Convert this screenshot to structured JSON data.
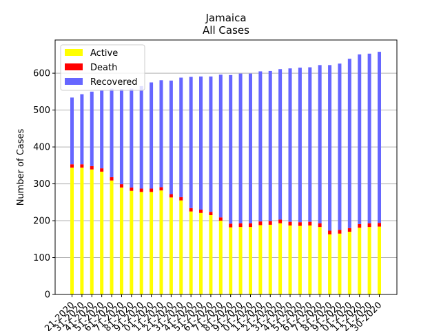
{
  "chart_data": {
    "type": "bar",
    "stacked": true,
    "title_line1": "Jamaica",
    "title_line2": "All Cases",
    "xlabel": "",
    "ylabel": "Number of Cases",
    "ylim": [
      0,
      690
    ],
    "yticks": [
      0,
      100,
      200,
      300,
      400,
      500,
      600
    ],
    "grid": "y",
    "legend_position": "top-left",
    "x_tick_labels_legible": false,
    "categories": [
      "1",
      "2",
      "3",
      "4",
      "5",
      "6",
      "7",
      "8",
      "9",
      "10",
      "11",
      "12",
      "13",
      "14",
      "15",
      "16",
      "17",
      "18",
      "19",
      "20",
      "21",
      "22",
      "23",
      "24",
      "25",
      "26",
      "27",
      "28",
      "29",
      "30",
      "31",
      "32"
    ],
    "series": [
      {
        "name": "Active",
        "color": "#ffff00",
        "values": [
          344,
          344,
          339,
          333,
          309,
          290,
          281,
          278,
          278,
          282,
          263,
          255,
          225,
          221,
          215,
          200,
          182,
          183,
          183,
          188,
          189,
          193,
          187,
          186,
          187,
          183,
          163,
          165,
          170,
          181,
          183,
          184
        ]
      },
      {
        "name": "Death",
        "color": "#ff0000",
        "values": [
          9,
          9,
          9,
          9,
          9,
          9,
          9,
          9,
          9,
          9,
          9,
          9,
          9,
          9,
          9,
          9,
          10,
          10,
          10,
          10,
          10,
          10,
          10,
          10,
          10,
          10,
          10,
          10,
          10,
          10,
          10,
          10
        ]
      },
      {
        "name": "Recovered",
        "color": "#6666ff",
        "values": [
          181,
          190,
          202,
          211,
          240,
          258,
          268,
          278,
          288,
          290,
          308,
          324,
          356,
          361,
          367,
          387,
          403,
          406,
          406,
          407,
          407,
          408,
          416,
          419,
          419,
          429,
          449,
          451,
          459,
          460,
          460,
          464
        ]
      }
    ],
    "x_tick_fragments": [
      "21-2020",
      "31-2020",
      "41-2020",
      "51-2020",
      "61-2020",
      "71-2020",
      "81-2020",
      "91-2020",
      "01-2020",
      "11-2020",
      "21-2020",
      "31-2020",
      "41-2020",
      "51-2020",
      "61-2020",
      "71-2020",
      "81-2020",
      "91-2020",
      "01-2020",
      "11-2020",
      "21-2020",
      "31-2020",
      "41-2020",
      "51-2020",
      "61-2020",
      "71-2020",
      "81-2020",
      "91-2020",
      "01-2020",
      "11-2020",
      "21-2020",
      "30-2020"
    ]
  }
}
